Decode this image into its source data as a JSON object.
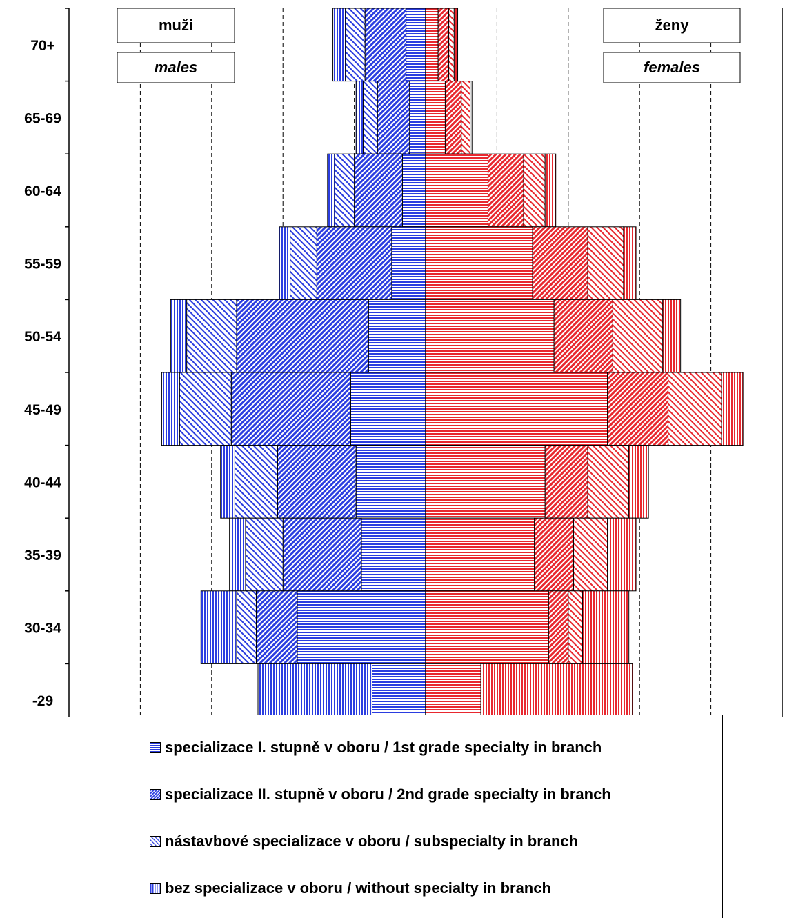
{
  "chart_data": {
    "type": "bar",
    "subtype": "population-pyramid-stacked",
    "categories": [
      "70+",
      "65-69",
      "60-64",
      "55-59",
      "50-54",
      "45-49",
      "40-44",
      "35-39",
      "30-34",
      "-29"
    ],
    "left_side": {
      "label": "muži",
      "label_en": "males",
      "color": "#2b3de0",
      "series": [
        {
          "name": "specializace I. stupně v oboru / 1st grade specialty in branch",
          "pattern": "horizontal",
          "values": [
            0.55,
            0.45,
            0.65,
            0.95,
            1.6,
            2.1,
            1.95,
            1.8,
            3.6,
            1.5
          ]
        },
        {
          "name": "specializace II. stupně v oboru / 2nd grade specialty in branch",
          "pattern": "diagonal-dense",
          "values": [
            1.15,
            0.9,
            1.35,
            2.1,
            3.7,
            3.35,
            2.2,
            2.2,
            1.15,
            0.0
          ]
        },
        {
          "name": "nástavbové specializace v oboru / subspecialty in branch",
          "pattern": "diagonal-light",
          "values": [
            0.55,
            0.4,
            0.55,
            0.75,
            1.4,
            1.45,
            1.2,
            1.05,
            0.55,
            0.0
          ]
        },
        {
          "name": "bez specializace v oboru / without specialty in branch",
          "pattern": "vertical",
          "values": [
            0.35,
            0.2,
            0.2,
            0.3,
            0.45,
            0.5,
            0.4,
            0.45,
            1.0,
            3.2
          ]
        }
      ]
    },
    "right_side": {
      "label": "ženy",
      "label_en": "females",
      "color": "#e8282f",
      "series": [
        {
          "name": "specializace I. stupně v oboru / 1st grade specialty in branch",
          "pattern": "horizontal",
          "values": [
            0.35,
            0.55,
            1.75,
            3.0,
            3.6,
            5.1,
            3.35,
            3.05,
            3.45,
            1.55
          ]
        },
        {
          "name": "specializace II. stupně v oboru / 2nd grade specialty in branch",
          "pattern": "diagonal-dense",
          "values": [
            0.3,
            0.45,
            1.0,
            1.55,
            1.65,
            1.7,
            1.2,
            1.1,
            0.55,
            0.0
          ]
        },
        {
          "name": "nástavbové specializace v oboru / subspecialty in branch",
          "pattern": "diagonal-light",
          "values": [
            0.15,
            0.25,
            0.6,
            1.0,
            1.4,
            1.5,
            1.15,
            0.95,
            0.4,
            0.0
          ]
        },
        {
          "name": "bez specializace v oboru / without specialty in branch",
          "pattern": "vertical",
          "values": [
            0.1,
            0.05,
            0.3,
            0.35,
            0.5,
            0.6,
            0.55,
            0.8,
            1.3,
            4.25
          ]
        }
      ]
    },
    "xlim": [
      -10,
      10
    ],
    "x_ticks": [
      "10 %",
      "8 %",
      "6 %",
      "4 %",
      "2 %",
      "0 %",
      "2 %",
      "4 %",
      "6 %",
      "8 %",
      "10 %"
    ],
    "grid": "vertical dashed",
    "legend_position": "bottom"
  },
  "legend": {
    "items": [
      "specializace I. stupně v oboru / 1st grade specialty in branch",
      "specializace II. stupně v oboru / 2nd grade specialty in branch",
      "nástavbové specializace v oboru / subspecialty in branch",
      "bez specializace v oboru / without specialty in branch"
    ]
  }
}
